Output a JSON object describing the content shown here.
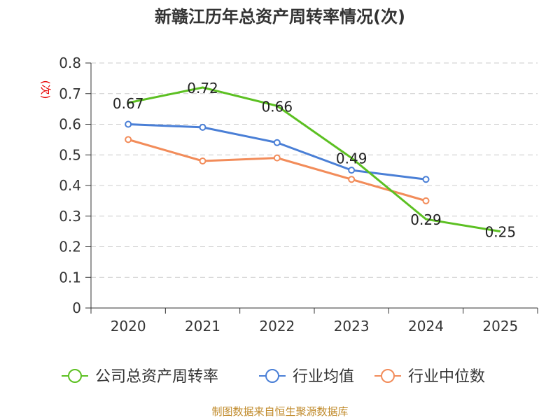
{
  "chart_data": {
    "type": "line",
    "title": "新赣江历年总资产周转率情况(次)",
    "ylabel": "(次)",
    "xlabel": "",
    "categories": [
      "2020",
      "2021",
      "2022",
      "2023",
      "2024",
      "2025"
    ],
    "ylim": [
      0,
      0.8
    ],
    "yticks": [
      "0",
      "0.1",
      "0.2",
      "0.3",
      "0.4",
      "0.5",
      "0.6",
      "0.7",
      "0.8"
    ],
    "grid": true,
    "legend_position": "bottom",
    "series": [
      {
        "name": "公司总资产周转率",
        "color": "#5cc022",
        "values": [
          0.67,
          0.72,
          0.66,
          0.49,
          0.29,
          0.25
        ],
        "labels": [
          "0.67",
          "0.72",
          "0.66",
          "0.49",
          "0.29",
          "0.25"
        ],
        "markers": false
      },
      {
        "name": "行业均值",
        "color": "#4a7fd6",
        "values": [
          0.6,
          0.59,
          0.54,
          0.45,
          0.42,
          null
        ],
        "markers": true
      },
      {
        "name": "行业中位数",
        "color": "#f28c5a",
        "values": [
          0.55,
          0.48,
          0.49,
          0.42,
          0.35,
          null
        ],
        "markers": true
      }
    ]
  },
  "source": "制图数据来自恒生聚源数据库"
}
